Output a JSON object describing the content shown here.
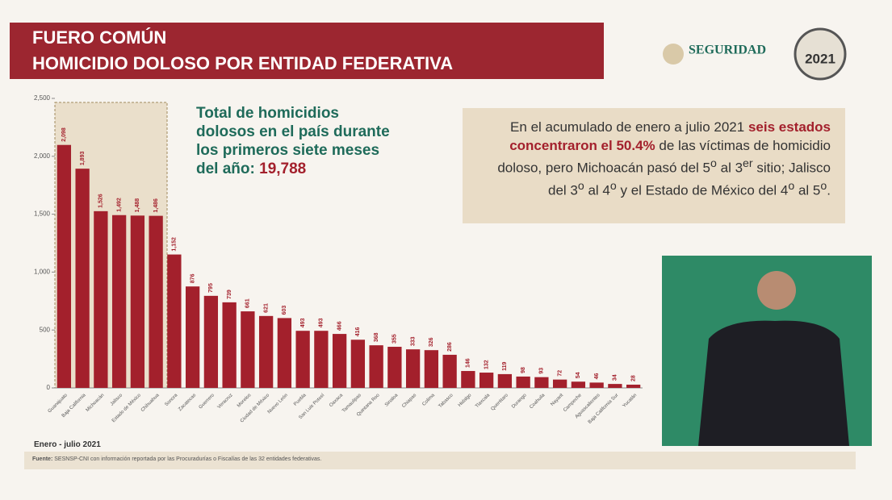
{
  "header": {
    "line1": "FUERO COMÚN",
    "line2": "HOMICIDIO DOLOSO POR ENTIDAD FEDERATIVA",
    "logo": "SEGURIDAD",
    "emblem": "2021"
  },
  "total": {
    "lines": [
      "Total de homicidios",
      "dolosos en el país durante",
      "los primeros siete meses",
      "del año: "
    ],
    "number": "19,788"
  },
  "callout": [
    "En el acumulado de enero a julio 2021 ",
    "seis estados concentraron el 50.4%",
    " de las víctimas de homicidio doloso, pero Michoacán pasó del 5",
    "o",
    " al 3",
    "er",
    " sitio; Jalisco del 3",
    "o",
    " al 4",
    "o",
    " y el Estado de México del 4",
    "o",
    " al 5",
    "o",
    "."
  ],
  "period": "Enero - julio 2021",
  "source": {
    "label": "Fuente:",
    "text": " SESNSP-CNI con información reportada por las Procuradurías o Fiscalías de las 32 entidades federativas."
  },
  "chart_data": {
    "type": "bar",
    "categories": [
      "Guanajuato",
      "Baja California",
      "Michoacán",
      "Jalisco",
      "Estado de México",
      "Chihuahua",
      "Sonora",
      "Zacatecas",
      "Guerrero",
      "Veracruz",
      "Morelos",
      "Ciudad de México",
      "Nuevo León",
      "Puebla",
      "San Luis Potosí",
      "Oaxaca",
      "Tamaulipas",
      "Quintana Roo",
      "Sinaloa",
      "Chiapas",
      "Colima",
      "Tabasco",
      "Hidalgo",
      "Tlaxcala",
      "Querétaro",
      "Durango",
      "Coahuila",
      "Nayarit",
      "Campeche",
      "Aguascalientes",
      "Baja California Sur",
      "Yucatán"
    ],
    "values": [
      2098,
      1893,
      1526,
      1492,
      1488,
      1486,
      1152,
      876,
      795,
      739,
      661,
      621,
      603,
      493,
      493,
      466,
      416,
      368,
      355,
      333,
      326,
      286,
      146,
      132,
      119,
      98,
      93,
      72,
      54,
      46,
      34,
      28
    ],
    "value_labels": [
      "2,098",
      "1,893",
      "1,526",
      "1,492",
      "1,488",
      "1,486",
      "1,152",
      "876",
      "795",
      "739",
      "661",
      "621",
      "603",
      "493",
      "493",
      "466",
      "416",
      "368",
      "355",
      "333",
      "326",
      "286",
      "146",
      "132",
      "119",
      "98",
      "93",
      "72",
      "54",
      "46",
      "34",
      "28"
    ],
    "color": "#a3202c",
    "ylim": [
      0,
      2500
    ],
    "yticks": [
      0,
      500,
      {
        "value": 1000,
        "label": "1,000"
      },
      {
        "value": 1500,
        "label": "1,500"
      },
      {
        "value": 2000,
        "label": "2,000"
      },
      {
        "value": 2500,
        "label": "2,500"
      }
    ],
    "grid": false
  }
}
